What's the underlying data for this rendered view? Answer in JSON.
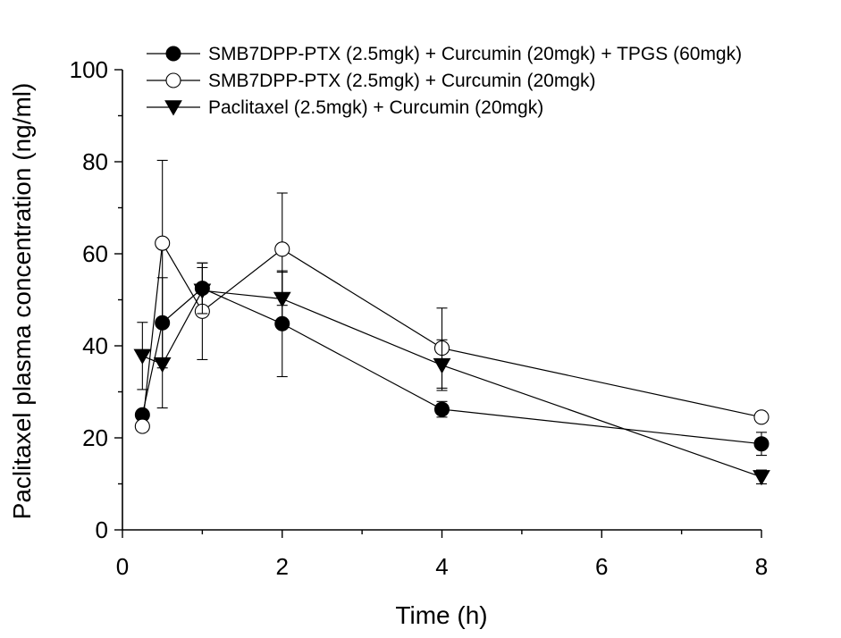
{
  "chart_data": {
    "type": "line",
    "xlabel": "Time (h)",
    "ylabel": "Paclitaxel plasma concentration (ng/ml)",
    "xlim": [
      0,
      8
    ],
    "ylim": [
      0,
      100
    ],
    "xticks": [
      0,
      2,
      4,
      6,
      8
    ],
    "yticks": [
      0,
      20,
      40,
      60,
      80,
      100
    ],
    "grid": false,
    "legend_position": "top-right",
    "series": [
      {
        "name": "SMB7DPP-PTX (2.5mgk) + Curcumin (20mgk) + TPGS (60mgk)",
        "marker": "filled-circle",
        "x": [
          0.25,
          0.5,
          1,
          2,
          4,
          8
        ],
        "y": [
          25,
          45,
          52.5,
          44.8,
          26.2,
          18.7
        ],
        "err": [
          1,
          9.8,
          5.5,
          11.5,
          1.7,
          2.5
        ]
      },
      {
        "name": "SMB7DPP-PTX (2.5mgk) + Curcumin (20mgk)",
        "marker": "open-circle",
        "x": [
          0.25,
          0.5,
          1,
          2,
          4,
          8
        ],
        "y": [
          22.5,
          62.3,
          47.5,
          61,
          39.5,
          24.5
        ],
        "err": [
          0.5,
          18,
          10.5,
          12.2,
          8.7,
          0.6
        ]
      },
      {
        "name": "Paclitaxel (2.5mgk) + Curcumin (20mgk)",
        "marker": "filled-triangle-down",
        "x": [
          0.25,
          0.5,
          1,
          2,
          4,
          8
        ],
        "y": [
          37.8,
          36,
          52,
          50.2,
          35.8,
          11.5
        ],
        "err": [
          7.3,
          9.5,
          5,
          5.8,
          5.5,
          1.5
        ]
      }
    ]
  }
}
